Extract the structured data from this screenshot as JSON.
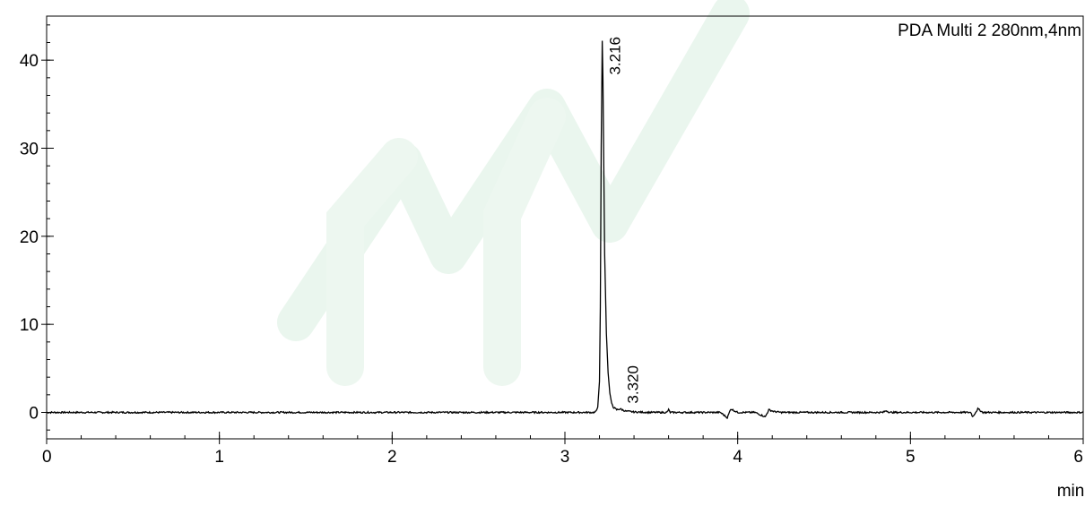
{
  "chart_data": {
    "type": "line",
    "title": "",
    "legend": "PDA Multi 2 280nm,4nm",
    "legend_placement": "top-right",
    "xlabel": "min",
    "ylabel": "",
    "xlim": [
      0,
      6
    ],
    "ylim": [
      -3,
      45
    ],
    "x_ticks": [
      0,
      1,
      2,
      3,
      4,
      5,
      6
    ],
    "x_tick_labels": [
      "0",
      "1",
      "2",
      "3",
      "4",
      "5",
      "6"
    ],
    "x_minor_step": 0.2,
    "y_ticks": [
      0,
      10,
      20,
      30,
      40
    ],
    "y_tick_labels": [
      "0",
      "10",
      "20",
      "30",
      "40"
    ],
    "y_minor_step": 2,
    "grid": false,
    "line_color": "#000000",
    "peaks": [
      {
        "label": "3.216",
        "x": 3.216,
        "y": 42.2
      },
      {
        "label": "3.320",
        "x": 3.32,
        "y": 0.4
      }
    ],
    "series": [
      {
        "x": [
          0.0,
          0.5,
          1.0,
          1.5,
          2.0,
          2.5,
          3.0,
          3.1,
          3.17,
          3.18,
          3.19,
          3.2,
          3.205,
          3.21,
          3.216,
          3.22,
          3.225,
          3.23,
          3.24,
          3.25,
          3.26,
          3.27,
          3.28,
          3.3,
          3.32,
          3.35,
          3.4,
          3.5,
          3.59,
          3.6,
          3.61,
          3.9,
          3.94,
          3.96,
          3.98,
          4.0,
          4.1,
          4.16,
          4.18,
          4.21,
          4.25,
          4.5,
          4.84,
          4.86,
          4.88,
          5.0,
          5.2,
          5.35,
          5.36,
          5.39,
          5.42,
          5.6,
          6.0
        ],
        "y": [
          0.0,
          0.0,
          0.0,
          0.0,
          0.0,
          0.0,
          0.0,
          0.0,
          0.0,
          0.1,
          0.6,
          3.5,
          12.0,
          30.0,
          42.2,
          38.0,
          28.0,
          18.0,
          9.0,
          4.5,
          2.2,
          1.1,
          0.6,
          0.3,
          0.4,
          0.15,
          0.05,
          0.0,
          0.0,
          0.3,
          0.0,
          0.0,
          -0.6,
          0.4,
          0.2,
          0.0,
          0.0,
          -0.5,
          0.3,
          0.1,
          0.0,
          0.0,
          0.0,
          0.2,
          0.0,
          0.0,
          0.0,
          0.0,
          -0.5,
          0.4,
          0.0,
          0.0,
          0.0
        ]
      }
    ]
  }
}
